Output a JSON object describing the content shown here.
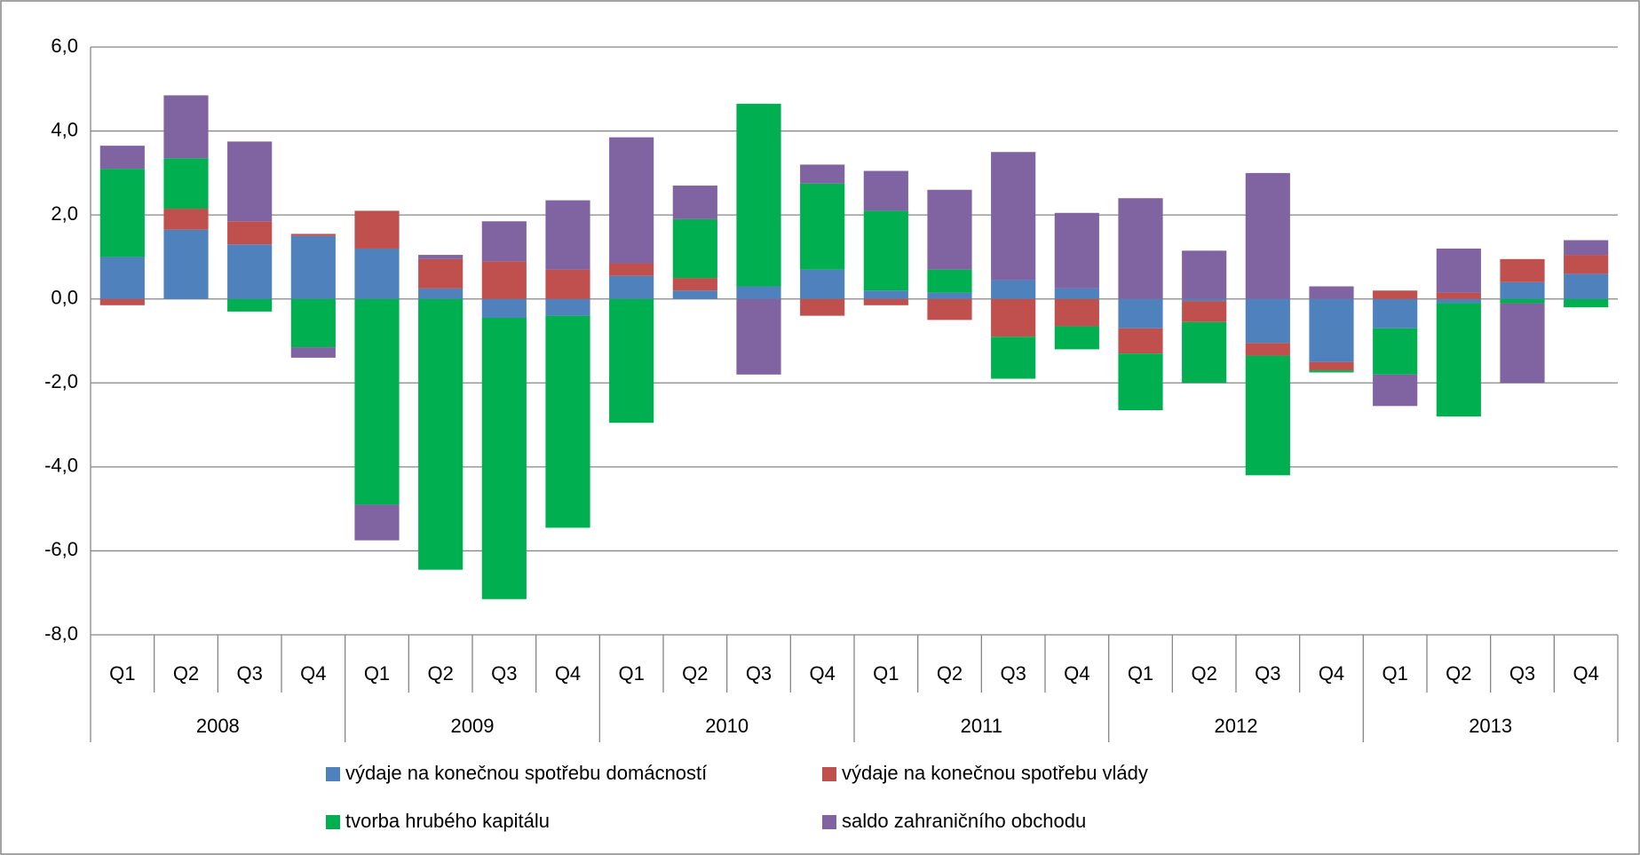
{
  "chart_data": {
    "type": "stacked_bar",
    "categories": [
      "Q1",
      "Q2",
      "Q3",
      "Q4",
      "Q1",
      "Q2",
      "Q3",
      "Q4",
      "Q1",
      "Q2",
      "Q3",
      "Q4",
      "Q1",
      "Q2",
      "Q3",
      "Q4",
      "Q1",
      "Q2",
      "Q3",
      "Q4",
      "Q1",
      "Q2",
      "Q3",
      "Q4"
    ],
    "groups": [
      "2008",
      "2009",
      "2010",
      "2011",
      "2012",
      "2013"
    ],
    "ylim": [
      -8,
      6
    ],
    "yticks": [
      {
        "value": -8,
        "label": "-8,0"
      },
      {
        "value": -6,
        "label": "-6,0"
      },
      {
        "value": -4,
        "label": "-4,0"
      },
      {
        "value": -2,
        "label": "-2,0"
      },
      {
        "value": 0,
        "label": "0,0"
      },
      {
        "value": 2,
        "label": "2,0"
      },
      {
        "value": 4,
        "label": "4,0"
      },
      {
        "value": 6,
        "label": "6,0"
      }
    ],
    "grid": true,
    "series": [
      {
        "name": "výdaje na konečnou spotřebu domácností",
        "color": "#4f81bd",
        "values": [
          1.0,
          1.65,
          1.3,
          1.5,
          1.2,
          0.25,
          -0.45,
          -0.4,
          0.55,
          0.2,
          0.3,
          0.7,
          0.2,
          0.15,
          0.45,
          0.25,
          -0.7,
          -0.05,
          -1.05,
          -1.5,
          -0.7,
          -0.1,
          0.4,
          0.6
        ]
      },
      {
        "name": "výdaje na konečnou spotřebu vlády",
        "color": "#c0504d",
        "values": [
          -0.15,
          0.5,
          0.55,
          0.05,
          0.9,
          0.7,
          0.9,
          0.7,
          0.3,
          0.3,
          0,
          -0.4,
          -0.15,
          -0.5,
          -0.9,
          -0.65,
          -0.6,
          -0.5,
          -0.3,
          -0.2,
          0.2,
          0.15,
          0.55,
          0.45
        ]
      },
      {
        "name": "tvorba hrubého kapitálu",
        "color": "#00b050",
        "values": [
          2.1,
          1.2,
          -0.3,
          -1.15,
          -4.9,
          -6.45,
          -6.7,
          -5.05,
          -2.95,
          1.4,
          4.35,
          2.05,
          1.9,
          0.55,
          -1.0,
          -0.55,
          -1.35,
          -1.45,
          -2.85,
          -0.05,
          -1.1,
          -2.7,
          -0.1,
          -0.2
        ]
      },
      {
        "name": "saldo zahraničního obchodu",
        "color": "#8064a2",
        "values": [
          0.55,
          1.5,
          1.9,
          -0.25,
          -0.85,
          0.1,
          0.95,
          1.65,
          3.0,
          0.8,
          -1.8,
          0.45,
          0.95,
          1.9,
          3.05,
          1.8,
          2.4,
          1.15,
          3.0,
          0.3,
          -0.75,
          1.05,
          -1.9,
          0.35
        ]
      }
    ],
    "legend": "bottom"
  }
}
